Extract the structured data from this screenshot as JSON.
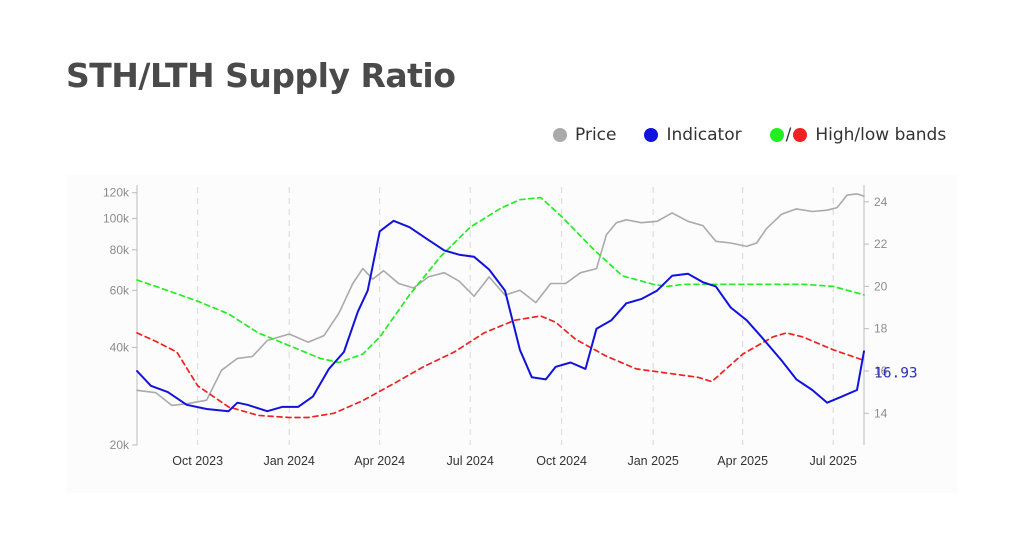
{
  "title": "STH/LTH Supply Ratio",
  "legend": {
    "price": {
      "label": "Price",
      "color": "#aaaaaa"
    },
    "indicator": {
      "label": "Indicator",
      "color": "#1212dd"
    },
    "bands": {
      "label": "High/low bands",
      "high_color": "#22ee22",
      "low_color": "#ee2222",
      "separator": "/"
    }
  },
  "chart_data": {
    "type": "line",
    "title": "STH/LTH Supply Ratio",
    "x_range": [
      "2023-08-01",
      "2025-08-01"
    ],
    "x_ticks": [
      {
        "date": "2023-10-01",
        "label": "Oct 2023"
      },
      {
        "date": "2024-01-01",
        "label": "Jan 2024"
      },
      {
        "date": "2024-04-01",
        "label": "Apr 2024"
      },
      {
        "date": "2024-07-01",
        "label": "Jul 2024"
      },
      {
        "date": "2024-10-01",
        "label": "Oct 2024"
      },
      {
        "date": "2025-01-01",
        "label": "Jan 2025"
      },
      {
        "date": "2025-04-01",
        "label": "Apr 2025"
      },
      {
        "date": "2025-07-01",
        "label": "Jul 2025"
      }
    ],
    "y_left": {
      "range": [
        20000,
        125000
      ],
      "scale": "log",
      "ticks": [
        {
          "value": 20000,
          "label": "20k"
        },
        {
          "value": 40000,
          "label": "40k"
        },
        {
          "value": 60000,
          "label": "60k"
        },
        {
          "value": 80000,
          "label": "80k"
        },
        {
          "value": 100000,
          "label": "100k"
        },
        {
          "value": 120000,
          "label": "120k"
        }
      ]
    },
    "y_right": {
      "range": [
        12.5,
        24.7
      ],
      "ticks": [
        {
          "value": 14,
          "label": "14"
        },
        {
          "value": 16,
          "label": "16"
        },
        {
          "value": 18,
          "label": "18"
        },
        {
          "value": 20,
          "label": "20"
        },
        {
          "value": 22,
          "label": "22"
        },
        {
          "value": 24,
          "label": "24"
        }
      ]
    },
    "grid": "vertical dashed at x ticks",
    "last_value_label": "16.93",
    "series": [
      {
        "name": "Price",
        "axis": "left",
        "color": "#aaaaaa",
        "style": "solid",
        "x": [
          "2023-08-01",
          "2023-08-20",
          "2023-09-05",
          "2023-09-20",
          "2023-10-10",
          "2023-10-25",
          "2023-11-10",
          "2023-11-25",
          "2023-12-10",
          "2024-01-01",
          "2024-01-20",
          "2024-02-05",
          "2024-02-20",
          "2024-03-05",
          "2024-03-15",
          "2024-03-25",
          "2024-04-05",
          "2024-04-20",
          "2024-05-05",
          "2024-05-20",
          "2024-06-05",
          "2024-06-20",
          "2024-07-05",
          "2024-07-20",
          "2024-08-05",
          "2024-08-20",
          "2024-09-05",
          "2024-09-20",
          "2024-10-05",
          "2024-10-20",
          "2024-11-05",
          "2024-11-15",
          "2024-11-25",
          "2024-12-05",
          "2024-12-20",
          "2025-01-05",
          "2025-01-20",
          "2025-02-05",
          "2025-02-20",
          "2025-03-05",
          "2025-03-20",
          "2025-04-05",
          "2025-04-15",
          "2025-04-25",
          "2025-05-10",
          "2025-05-25",
          "2025-06-10",
          "2025-06-25",
          "2025-07-05",
          "2025-07-15",
          "2025-07-25",
          "2025-08-01"
        ],
        "y": [
          29500,
          29000,
          26500,
          26800,
          27500,
          34000,
          37000,
          37500,
          42000,
          44000,
          41500,
          43500,
          51000,
          63000,
          70000,
          65000,
          69000,
          63000,
          61000,
          66000,
          68000,
          64000,
          57500,
          66000,
          58000,
          60000,
          55000,
          63000,
          63000,
          68000,
          70000,
          89000,
          97000,
          99000,
          97000,
          98000,
          104000,
          98000,
          95000,
          85000,
          84000,
          82000,
          84000,
          93000,
          103000,
          107000,
          105000,
          106000,
          108000,
          118000,
          119000,
          117000
        ]
      },
      {
        "name": "Indicator",
        "axis": "right",
        "color": "#1212dd",
        "style": "solid",
        "x": [
          "2023-08-01",
          "2023-08-15",
          "2023-09-01",
          "2023-09-20",
          "2023-10-10",
          "2023-11-01",
          "2023-11-10",
          "2023-11-20",
          "2023-12-10",
          "2023-12-25",
          "2024-01-10",
          "2024-01-25",
          "2024-02-10",
          "2024-02-25",
          "2024-03-10",
          "2024-03-20",
          "2024-04-01",
          "2024-04-15",
          "2024-05-01",
          "2024-05-20",
          "2024-06-05",
          "2024-06-20",
          "2024-07-05",
          "2024-07-20",
          "2024-08-05",
          "2024-08-20",
          "2024-09-01",
          "2024-09-15",
          "2024-09-25",
          "2024-10-10",
          "2024-10-25",
          "2024-11-05",
          "2024-11-20",
          "2024-12-05",
          "2024-12-20",
          "2025-01-05",
          "2025-01-20",
          "2025-02-05",
          "2025-02-20",
          "2025-03-05",
          "2025-03-20",
          "2025-04-05",
          "2025-04-20",
          "2025-05-10",
          "2025-05-25",
          "2025-06-10",
          "2025-06-25",
          "2025-07-10",
          "2025-07-25",
          "2025-08-01"
        ],
        "y": [
          16.0,
          15.3,
          15.0,
          14.4,
          14.2,
          14.1,
          14.5,
          14.4,
          14.1,
          14.3,
          14.3,
          14.8,
          16.1,
          16.9,
          18.8,
          19.8,
          22.6,
          23.1,
          22.8,
          22.2,
          21.7,
          21.5,
          21.4,
          20.8,
          19.8,
          17.0,
          15.7,
          15.6,
          16.2,
          16.4,
          16.1,
          18.0,
          18.4,
          19.2,
          19.4,
          19.8,
          20.5,
          20.6,
          20.2,
          20.0,
          19.0,
          18.4,
          17.6,
          16.5,
          15.6,
          15.1,
          14.5,
          14.8,
          15.1,
          16.93
        ]
      },
      {
        "name": "High band",
        "axis": "right",
        "color": "#22ee22",
        "style": "dashed",
        "x": [
          "2023-08-01",
          "2023-09-01",
          "2023-10-01",
          "2023-11-01",
          "2023-12-01",
          "2024-01-01",
          "2024-02-01",
          "2024-02-20",
          "2024-03-15",
          "2024-04-01",
          "2024-05-01",
          "2024-06-01",
          "2024-07-01",
          "2024-08-01",
          "2024-08-20",
          "2024-09-10",
          "2024-10-01",
          "2024-11-01",
          "2024-12-01",
          "2025-01-01",
          "2025-01-15",
          "2025-02-01",
          "2025-03-01",
          "2025-04-01",
          "2025-05-01",
          "2025-06-01",
          "2025-07-01",
          "2025-08-01"
        ],
        "y": [
          20.3,
          19.8,
          19.3,
          18.7,
          17.8,
          17.2,
          16.6,
          16.4,
          16.8,
          17.6,
          19.6,
          21.4,
          22.8,
          23.7,
          24.1,
          24.2,
          23.3,
          21.8,
          20.5,
          20.1,
          20.0,
          20.1,
          20.1,
          20.1,
          20.1,
          20.1,
          20.0,
          19.6
        ]
      },
      {
        "name": "Low band",
        "axis": "right",
        "color": "#ee2222",
        "style": "dashed",
        "x": [
          "2023-08-01",
          "2023-08-20",
          "2023-09-10",
          "2023-10-01",
          "2023-11-01",
          "2023-12-01",
          "2024-01-01",
          "2024-01-20",
          "2024-02-15",
          "2024-03-15",
          "2024-04-15",
          "2024-05-15",
          "2024-06-15",
          "2024-07-15",
          "2024-08-15",
          "2024-09-10",
          "2024-09-25",
          "2024-10-15",
          "2024-11-15",
          "2024-12-15",
          "2025-01-15",
          "2025-02-15",
          "2025-03-01",
          "2025-04-01",
          "2025-05-01",
          "2025-05-15",
          "2025-06-01",
          "2025-07-01",
          "2025-08-01"
        ],
        "y": [
          17.8,
          17.4,
          16.9,
          15.3,
          14.3,
          13.9,
          13.8,
          13.8,
          14.0,
          14.6,
          15.4,
          16.2,
          16.9,
          17.8,
          18.4,
          18.6,
          18.3,
          17.5,
          16.7,
          16.1,
          15.9,
          15.7,
          15.5,
          16.8,
          17.6,
          17.8,
          17.6,
          17.0,
          16.5
        ]
      }
    ]
  }
}
